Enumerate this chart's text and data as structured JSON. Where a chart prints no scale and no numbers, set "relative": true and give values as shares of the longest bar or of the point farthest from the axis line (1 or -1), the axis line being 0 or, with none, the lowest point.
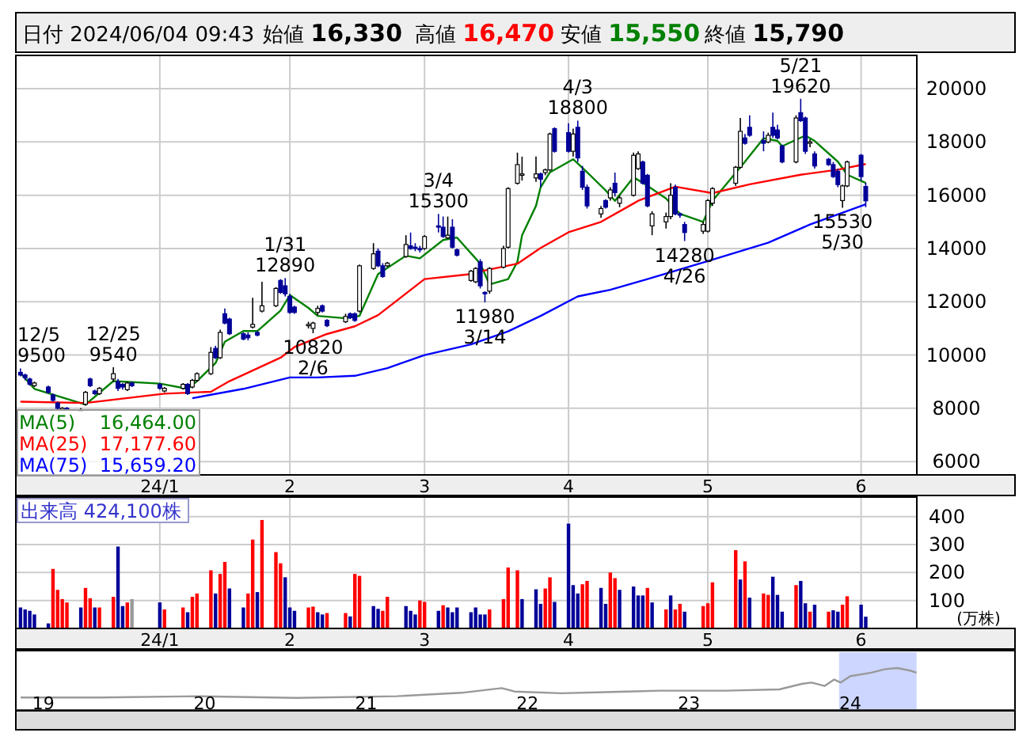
{
  "chart_data": [
    {
      "type": "candlestick",
      "title": "日付 2024/06/04 09:43",
      "xlim": [
        "2023-12-04",
        "2024-06-15"
      ],
      "annotations": [
        "始値 **16,330**",
        "高値 **16,470**",
        "安値 **15,550**",
        "終値 **15,790**",
        {
          "text": "12/5 9500",
          "x": "2023-12-05",
          "y": 9500
        },
        {
          "text": "12/25 9540",
          "x": "2023-12-25",
          "y": 9540
        },
        {
          "text": "1/31 12890",
          "x": "2024-01-31",
          "y": 12890
        },
        {
          "text": "10820 2/6",
          "x": "2024-02-06",
          "y": 10820
        },
        {
          "text": "3/4 15300",
          "x": "2024-03-04",
          "y": 15300
        },
        {
          "text": "11980 3/14",
          "x": "2024-03-14",
          "y": 11980
        },
        {
          "text": "4/3 18800",
          "x": "2024-04-03",
          "y": 18800
        },
        {
          "text": "14280 4/26",
          "x": "2024-04-26",
          "y": 14280
        },
        {
          "text": "5/21 19620",
          "x": "2024-05-21",
          "y": 19620
        },
        {
          "text": "15530 5/30",
          "x": "2024-05-30",
          "y": 15530
        }
      ],
      "x": [
        "2023-12-05",
        "2023-12-06",
        "2023-12-07",
        "2023-12-08",
        "2023-12-11",
        "2023-12-12",
        "2023-12-13",
        "2023-12-14",
        "2023-12-15",
        "2023-12-18",
        "2023-12-19",
        "2023-12-20",
        "2023-12-21",
        "2023-12-22",
        "2023-12-25",
        "2023-12-26",
        "2023-12-27",
        "2023-12-28",
        "2023-12-29",
        "2024-01-04",
        "2024-01-05",
        "2024-01-09",
        "2024-01-10",
        "2024-01-11",
        "2024-01-12",
        "2024-01-15",
        "2024-01-16",
        "2024-01-17",
        "2024-01-18",
        "2024-01-19",
        "2024-01-22",
        "2024-01-23",
        "2024-01-24",
        "2024-01-25",
        "2024-01-26",
        "2024-01-29",
        "2024-01-30",
        "2024-01-31",
        "2024-02-01",
        "2024-02-02",
        "2024-02-05",
        "2024-02-06",
        "2024-02-07",
        "2024-02-08",
        "2024-02-09",
        "2024-02-13",
        "2024-02-14",
        "2024-02-15",
        "2024-02-16",
        "2024-02-19",
        "2024-02-20",
        "2024-02-21",
        "2024-02-22",
        "2024-02-26",
        "2024-02-27",
        "2024-02-28",
        "2024-02-29",
        "2024-03-01",
        "2024-03-04",
        "2024-03-05",
        "2024-03-06",
        "2024-03-07",
        "2024-03-08",
        "2024-03-11",
        "2024-03-12",
        "2024-03-13",
        "2024-03-14",
        "2024-03-15",
        "2024-03-18",
        "2024-03-19",
        "2024-03-21",
        "2024-03-22",
        "2024-03-25",
        "2024-03-26",
        "2024-03-27",
        "2024-03-28",
        "2024-03-29",
        "2024-04-01",
        "2024-04-02",
        "2024-04-03",
        "2024-04-04",
        "2024-04-05",
        "2024-04-08",
        "2024-04-09",
        "2024-04-10",
        "2024-04-11",
        "2024-04-12",
        "2024-04-15",
        "2024-04-16",
        "2024-04-17",
        "2024-04-18",
        "2024-04-19",
        "2024-04-22",
        "2024-04-23",
        "2024-04-24",
        "2024-04-25",
        "2024-04-26",
        "2024-04-30",
        "2024-05-01",
        "2024-05-02",
        "2024-05-07",
        "2024-05-08",
        "2024-05-09",
        "2024-05-10",
        "2024-05-13",
        "2024-05-14",
        "2024-05-15",
        "2024-05-16",
        "2024-05-17",
        "2024-05-20",
        "2024-05-21",
        "2024-05-22",
        "2024-05-23",
        "2024-05-24",
        "2024-05-27",
        "2024-05-28",
        "2024-05-29",
        "2024-05-30",
        "2024-05-31",
        "2024-06-03",
        "2024-06-04"
      ],
      "ohlc": [
        [
          9350,
          9500,
          9200,
          9250
        ],
        [
          9250,
          9300,
          9050,
          9150
        ],
        [
          9100,
          9150,
          8850,
          8900
        ],
        [
          8850,
          9000,
          8800,
          8950
        ],
        [
          8800,
          8850,
          8550,
          8600
        ],
        [
          8500,
          8550,
          8250,
          8300
        ],
        [
          8200,
          8250,
          7950,
          8000
        ],
        [
          7950,
          8050,
          7950,
          8000
        ],
        [
          8000,
          8050,
          7950,
          7950
        ],
        [
          7950,
          8000,
          7950,
          7950
        ],
        [
          8150,
          8650,
          8100,
          8600
        ],
        [
          9100,
          9150,
          8800,
          8850
        ],
        [
          8650,
          8700,
          8500,
          8550
        ],
        [
          8550,
          8800,
          8500,
          8750
        ],
        [
          9100,
          9540,
          9000,
          9300
        ],
        [
          9000,
          9100,
          8650,
          8750
        ],
        [
          8900,
          8950,
          8700,
          8800
        ],
        [
          8700,
          9000,
          8650,
          8950
        ],
        [
          8950,
          9000,
          8800,
          8850
        ],
        [
          8900,
          8950,
          8700,
          8750
        ],
        [
          8650,
          8800,
          8600,
          8750
        ],
        [
          8750,
          8950,
          8700,
          8900
        ],
        [
          8900,
          8950,
          8500,
          8550
        ],
        [
          8800,
          9100,
          8750,
          9050
        ],
        [
          9050,
          9350,
          9000,
          9300
        ],
        [
          9300,
          10300,
          9250,
          10100
        ],
        [
          10250,
          10350,
          9850,
          9900
        ],
        [
          9900,
          10950,
          9850,
          10850
        ],
        [
          11550,
          11750,
          11150,
          11200
        ],
        [
          11350,
          11400,
          10750,
          10800
        ],
        [
          10800,
          10850,
          10550,
          10600
        ],
        [
          10750,
          10850,
          10550,
          10650
        ],
        [
          11050,
          12150,
          11000,
          11150
        ],
        [
          10850,
          10900,
          10700,
          10750
        ],
        [
          11650,
          12750,
          11600,
          11850
        ],
        [
          11850,
          12550,
          11800,
          12500
        ],
        [
          12800,
          12850,
          12300,
          12350
        ],
        [
          12600,
          12890,
          12200,
          12300
        ],
        [
          12200,
          12300,
          11550,
          11600
        ],
        [
          11800,
          11850,
          11550,
          11600
        ],
        [
          11100,
          11250,
          11000,
          11150
        ],
        [
          11000,
          11250,
          10820,
          11200
        ],
        [
          11600,
          11850,
          11500,
          11750
        ],
        [
          11850,
          11900,
          11600,
          11650
        ],
        [
          11300,
          11350,
          11050,
          11100
        ],
        [
          11250,
          11550,
          11200,
          11450
        ],
        [
          11550,
          11600,
          11350,
          11400
        ],
        [
          11550,
          11600,
          11250,
          11300
        ],
        [
          11650,
          13400,
          11600,
          13350
        ],
        [
          13250,
          14200,
          13200,
          13800
        ],
        [
          13900,
          14000,
          13300,
          13350
        ],
        [
          13350,
          13450,
          12900,
          12950
        ],
        [
          13350,
          13500,
          13300,
          13450
        ],
        [
          13700,
          14500,
          13650,
          14150
        ],
        [
          14100,
          14600,
          13950,
          14000
        ],
        [
          14050,
          14200,
          13900,
          14000
        ],
        [
          14000,
          14100,
          13850,
          13950
        ],
        [
          14000,
          14500,
          13950,
          14450
        ],
        [
          14850,
          15300,
          14600,
          14800
        ],
        [
          14800,
          15200,
          14400,
          14450
        ],
        [
          14400,
          15200,
          14350,
          14500
        ],
        [
          14800,
          15100,
          14000,
          14050
        ],
        [
          13950,
          14000,
          13700,
          13750
        ],
        [
          12800,
          13200,
          12750,
          13150
        ],
        [
          12750,
          13300,
          12700,
          13250
        ],
        [
          13500,
          13600,
          12500,
          12600
        ],
        [
          12350,
          12400,
          11980,
          12300
        ],
        [
          12400,
          13300,
          12300,
          13250
        ],
        [
          13300,
          14100,
          13250,
          14000
        ],
        [
          14050,
          16300,
          14000,
          16250
        ],
        [
          16450,
          17600,
          16400,
          17150
        ],
        [
          16750,
          17450,
          16550,
          16800
        ],
        [
          16650,
          17450,
          16500,
          16800
        ],
        [
          16800,
          16850,
          16300,
          16600
        ],
        [
          16850,
          17000,
          16750,
          16950
        ],
        [
          16950,
          18350,
          16900,
          18300
        ],
        [
          18500,
          18550,
          17600,
          17650
        ],
        [
          18350,
          18700,
          17600,
          17650
        ],
        [
          17650,
          18500,
          17450,
          18300
        ],
        [
          18550,
          18800,
          17250,
          17400
        ],
        [
          16900,
          17100,
          16200,
          16300
        ],
        [
          16300,
          16400,
          15500,
          15600
        ],
        [
          15300,
          15600,
          15150,
          15500
        ],
        [
          15800,
          15850,
          15500,
          15550
        ],
        [
          15900,
          16300,
          15800,
          16200
        ],
        [
          16450,
          16850,
          15950,
          16100
        ],
        [
          15700,
          16000,
          15550,
          15900
        ],
        [
          16000,
          17600,
          15950,
          17500
        ],
        [
          17000,
          17650,
          16950,
          17550
        ],
        [
          17250,
          17300,
          16400,
          16450
        ],
        [
          16750,
          16800,
          15550,
          15600
        ],
        [
          14850,
          15400,
          14500,
          15300
        ],
        [
          15000,
          15350,
          14750,
          15200
        ],
        [
          15200,
          16450,
          15100,
          16000
        ],
        [
          16300,
          16400,
          15250,
          15300
        ],
        [
          15300,
          15350,
          15150,
          15250
        ],
        [
          14900,
          15000,
          14280,
          14600
        ],
        [
          14650,
          15000,
          14550,
          14900
        ],
        [
          14650,
          15850,
          14600,
          15800
        ],
        [
          15700,
          16300,
          15600,
          16250
        ],
        [
          16450,
          17100,
          16350,
          17050
        ],
        [
          17050,
          18900,
          17000,
          18400
        ],
        [
          18150,
          18300,
          17900,
          17950
        ],
        [
          18550,
          19000,
          18200,
          18250
        ],
        [
          18050,
          18400,
          17650,
          17950
        ],
        [
          18000,
          18350,
          17950,
          18250
        ],
        [
          18550,
          19100,
          18150,
          18250
        ],
        [
          18450,
          18650,
          18100,
          18150
        ],
        [
          17850,
          17900,
          17200,
          17250
        ],
        [
          17250,
          19000,
          17200,
          18900
        ],
        [
          19100,
          19620,
          18750,
          18800
        ],
        [
          18900,
          18950,
          17550,
          17650
        ],
        [
          17950,
          18100,
          17800,
          18000
        ],
        [
          17550,
          17650,
          17000,
          17100
        ],
        [
          17350,
          17400,
          17100,
          17150
        ],
        [
          17150,
          17250,
          16650,
          16700
        ],
        [
          16900,
          17000,
          16300,
          16400
        ],
        [
          15800,
          16400,
          15530,
          16350
        ],
        [
          16350,
          17300,
          16300,
          17250
        ],
        [
          17500,
          17550,
          16550,
          16700
        ],
        [
          16330,
          16470,
          15550,
          15790
        ]
      ],
      "series": [
        {
          "name": "MA(5) 16,464.00",
          "color": "#008000",
          "type": "line",
          "x": [
            "2023-12-05",
            "2023-12-08",
            "2023-12-19",
            "2023-12-25",
            "2024-01-04",
            "2024-01-10",
            "2024-01-12",
            "2024-01-16",
            "2024-01-18",
            "2024-01-22",
            "2024-01-25",
            "2024-01-30",
            "2024-02-01",
            "2024-02-05",
            "2024-02-07",
            "2024-02-13",
            "2024-02-16",
            "2024-02-20",
            "2024-02-26",
            "2024-02-29",
            "2024-03-05",
            "2024-03-08",
            "2024-03-13",
            "2024-03-15",
            "2024-03-19",
            "2024-03-21",
            "2024-03-22",
            "2024-03-25",
            "2024-03-26",
            "2024-03-28",
            "2024-04-02",
            "2024-04-05",
            "2024-04-09",
            "2024-04-11",
            "2024-04-15",
            "2024-04-17",
            "2024-04-22",
            "2024-04-25",
            "2024-04-30",
            "2024-05-02",
            "2024-05-09",
            "2024-05-13",
            "2024-05-16",
            "2024-05-17",
            "2024-05-22",
            "2024-05-24",
            "2024-05-29",
            "2024-05-31",
            "2024-06-04"
          ],
          "values": [
            9320,
            8730,
            8140,
            9020,
            8930,
            8730,
            9020,
            9700,
            10500,
            10900,
            10900,
            11670,
            12250,
            11770,
            11470,
            11380,
            11470,
            13040,
            13730,
            13630,
            14320,
            14410,
            13430,
            12650,
            12850,
            13500,
            14500,
            15600,
            16300,
            16860,
            17350,
            16860,
            16180,
            15790,
            16670,
            16470,
            15880,
            15300,
            15000,
            15790,
            17260,
            18140,
            18040,
            17840,
            18240,
            18040,
            17260,
            16770,
            16460
          ]
        },
        {
          "name": "MA(25) 17,177.60",
          "color": "#ff0000",
          "type": "line",
          "x": [
            "2023-12-05",
            "2023-12-19",
            "2024-01-05",
            "2024-01-15",
            "2024-01-19",
            "2024-01-24",
            "2024-01-30",
            "2024-02-02",
            "2024-02-09",
            "2024-02-15",
            "2024-02-20",
            "2024-03-01",
            "2024-03-11",
            "2024-03-13",
            "2024-03-21",
            "2024-03-26",
            "2024-04-01",
            "2024-04-08",
            "2024-04-15",
            "2024-04-16",
            "2024-04-24",
            "2024-05-02",
            "2024-05-10",
            "2024-05-21",
            "2024-05-29",
            "2024-06-04"
          ],
          "values": [
            8250,
            8200,
            8550,
            8620,
            9020,
            9420,
            9900,
            10300,
            10790,
            11080,
            11500,
            12850,
            13040,
            13140,
            13430,
            14020,
            14610,
            15000,
            15690,
            15790,
            16320,
            16080,
            16410,
            16770,
            16960,
            17170
          ]
        },
        {
          "name": "MA(75) 15,659.20",
          "color": "#0000ff",
          "type": "line",
          "x": [
            "2024-01-11",
            "2024-01-22",
            "2024-02-01",
            "2024-02-07",
            "2024-02-15",
            "2024-02-22",
            "2024-03-01",
            "2024-03-11",
            "2024-03-19",
            "2024-03-26",
            "2024-04-03",
            "2024-04-10",
            "2024-04-18",
            "2024-05-01",
            "2024-05-14",
            "2024-05-23",
            "2024-06-04"
          ],
          "values": [
            8380,
            8730,
            9160,
            9160,
            9220,
            9510,
            10000,
            10400,
            10890,
            11470,
            12200,
            12450,
            12850,
            13530,
            14220,
            14900,
            15660
          ]
        }
      ],
      "ylim": [
        5500,
        21250
      ],
      "yticks": [
        6000,
        8000,
        10000,
        12000,
        14000,
        16000,
        18000,
        20000
      ],
      "xticks": [
        {
          "value": "2024-01-04",
          "label": "24/1"
        },
        {
          "value": "2024-02-01",
          "label": "2"
        },
        {
          "value": "2024-03-01",
          "label": "3"
        },
        {
          "value": "2024-04-01",
          "label": "4"
        },
        {
          "value": "2024-05-01",
          "label": "5"
        },
        {
          "value": "2024-06-03",
          "label": "6"
        }
      ],
      "grid": true,
      "legend": "bottom left"
    },
    {
      "type": "bar",
      "title": "出来高 424,100株",
      "ylabel": "(万株)",
      "xlim": [
        "2023-12-04",
        "2024-06-15"
      ],
      "x": [
        "2023-12-05",
        "2023-12-06",
        "2023-12-07",
        "2023-12-08",
        "2023-12-11",
        "2023-12-12",
        "2023-12-13",
        "2023-12-14",
        "2023-12-15",
        "2023-12-18",
        "2023-12-19",
        "2023-12-20",
        "2023-12-21",
        "2023-12-22",
        "2023-12-25",
        "2023-12-26",
        "2023-12-27",
        "2023-12-28",
        "2023-12-29",
        "2024-01-04",
        "2024-01-05",
        "2024-01-09",
        "2024-01-10",
        "2024-01-11",
        "2024-01-12",
        "2024-01-15",
        "2024-01-16",
        "2024-01-17",
        "2024-01-18",
        "2024-01-19",
        "2024-01-22",
        "2024-01-23",
        "2024-01-24",
        "2024-01-25",
        "2024-01-26",
        "2024-01-29",
        "2024-01-30",
        "2024-01-31",
        "2024-02-01",
        "2024-02-02",
        "2024-02-05",
        "2024-02-06",
        "2024-02-07",
        "2024-02-08",
        "2024-02-09",
        "2024-02-13",
        "2024-02-14",
        "2024-02-15",
        "2024-02-16",
        "2024-02-19",
        "2024-02-20",
        "2024-02-21",
        "2024-02-22",
        "2024-02-26",
        "2024-02-27",
        "2024-02-28",
        "2024-02-29",
        "2024-03-01",
        "2024-03-04",
        "2024-03-05",
        "2024-03-06",
        "2024-03-07",
        "2024-03-08",
        "2024-03-11",
        "2024-03-12",
        "2024-03-13",
        "2024-03-14",
        "2024-03-15",
        "2024-03-18",
        "2024-03-19",
        "2024-03-21",
        "2024-03-22",
        "2024-03-25",
        "2024-03-26",
        "2024-03-27",
        "2024-03-28",
        "2024-03-29",
        "2024-04-01",
        "2024-04-02",
        "2024-04-03",
        "2024-04-04",
        "2024-04-05",
        "2024-04-08",
        "2024-04-09",
        "2024-04-10",
        "2024-04-11",
        "2024-04-12",
        "2024-04-15",
        "2024-04-16",
        "2024-04-17",
        "2024-04-18",
        "2024-04-19",
        "2024-04-22",
        "2024-04-23",
        "2024-04-24",
        "2024-04-25",
        "2024-04-26",
        "2024-04-30",
        "2024-05-01",
        "2024-05-02",
        "2024-05-07",
        "2024-05-08",
        "2024-05-09",
        "2024-05-10",
        "2024-05-13",
        "2024-05-14",
        "2024-05-15",
        "2024-05-16",
        "2024-05-17",
        "2024-05-20",
        "2024-05-21",
        "2024-05-22",
        "2024-05-23",
        "2024-05-24",
        "2024-05-27",
        "2024-05-28",
        "2024-05-29",
        "2024-05-30",
        "2024-05-31",
        "2024-06-03",
        "2024-06-04"
      ],
      "values": [
        75,
        68,
        63,
        50,
        18,
        213,
        138,
        105,
        93,
        75,
        145,
        108,
        75,
        75,
        113,
        293,
        80,
        93,
        105,
        93,
        68,
        75,
        58,
        113,
        125,
        208,
        125,
        195,
        238,
        143,
        75,
        125,
        318,
        130,
        388,
        273,
        233,
        183,
        75,
        63,
        75,
        78,
        58,
        50,
        55,
        55,
        43,
        195,
        188,
        80,
        70,
        63,
        113,
        80,
        63,
        50,
        100,
        95,
        63,
        83,
        75,
        58,
        75,
        58,
        75,
        50,
        50,
        68,
        105,
        218,
        208,
        105,
        140,
        88,
        143,
        183,
        95,
        375,
        155,
        125,
        158,
        170,
        145,
        88,
        200,
        180,
        138,
        150,
        118,
        118,
        145,
        93,
        68,
        118,
        68,
        88,
        60,
        80,
        90,
        165,
        280,
        175,
        240,
        110,
        125,
        120,
        185,
        120,
        60,
        155,
        170,
        90,
        60,
        85,
        60,
        65,
        60,
        85,
        115,
        85,
        42
      ],
      "colors": [
        "#000099",
        "#000099",
        "#000099",
        "#000099",
        "#000099",
        "#ff0000",
        "#ff0000",
        "#ff0000",
        "#ff0000",
        "#000099",
        "#ff0000",
        "#ff0000",
        "#000099",
        "#ff0000",
        "#ff0000",
        "#000099",
        "#000099",
        "#ff0000",
        "#999999",
        "#000099",
        "#ff0000",
        "#ff0000",
        "#000099",
        "#ff0000",
        "#ff0000",
        "#ff0000",
        "#000099",
        "#ff0000",
        "#ff0000",
        "#000099",
        "#000099",
        "#ff0000",
        "#ff0000",
        "#000099",
        "#ff0000",
        "#ff0000",
        "#ff0000",
        "#000099",
        "#000099",
        "#000099",
        "#ff0000",
        "#ff0000",
        "#000099",
        "#000099",
        "#ff0000",
        "#ff0000",
        "#000099",
        "#ff0000",
        "#ff0000",
        "#000099",
        "#000099",
        "#ff0000",
        "#ff0000",
        "#000099",
        "#000099",
        "#000099",
        "#ff0000",
        "#ff0000",
        "#000099",
        "#ff0000",
        "#000099",
        "#000099",
        "#000099",
        "#000099",
        "#000099",
        "#000099",
        "#000099",
        "#ff0000",
        "#ff0000",
        "#ff0000",
        "#ff0000",
        "#000099",
        "#000099",
        "#000099",
        "#ff0000",
        "#ff0000",
        "#000099",
        "#000099",
        "#000099",
        "#000099",
        "#ff0000",
        "#ff0000",
        "#000099",
        "#000099",
        "#ff0000",
        "#ff0000",
        "#000099",
        "#000099",
        "#000099",
        "#000099",
        "#ff0000",
        "#000099",
        "#ff0000",
        "#000099",
        "#ff0000",
        "#ff0000",
        "#000099",
        "#ff0000",
        "#ff0000",
        "#ff0000",
        "#ff0000",
        "#000099",
        "#ff0000",
        "#000099",
        "#ff0000",
        "#ff0000",
        "#000099",
        "#000099",
        "#000099",
        "#ff0000",
        "#000099",
        "#000099",
        "#ff0000",
        "#000099",
        "#ff0000",
        "#000099",
        "#000099",
        "#ff0000",
        "#ff0000",
        "#000099",
        "#000099"
      ],
      "ylim": [
        0,
        470
      ],
      "yticks": [
        100,
        200,
        300,
        400
      ],
      "xticks": [
        {
          "value": "2024-01-04",
          "label": "24/1"
        },
        {
          "value": "2024-02-01",
          "label": "2"
        },
        {
          "value": "2024-03-01",
          "label": "3"
        },
        {
          "value": "2024-04-01",
          "label": "4"
        },
        {
          "value": "2024-05-01",
          "label": "5"
        },
        {
          "value": "2024-06-03",
          "label": "6"
        }
      ],
      "grid": true
    },
    {
      "type": "line",
      "relative": true,
      "color": "#999999",
      "x": [
        2018.86,
        2019.35,
        2019.96,
        2020.57,
        2021.19,
        2021.59,
        2021.84,
        2021.92,
        2022.21,
        2022.62,
        2022.82,
        2023.23,
        2023.56,
        2023.7,
        2023.76,
        2023.84,
        2023.9,
        2023.94,
        2024.0,
        2024.13,
        2024.21,
        2024.29,
        2024.37,
        2024.41
      ],
      "values": [
        0.31,
        0.31,
        0.34,
        0.3,
        0.34,
        0.42,
        0.53,
        0.45,
        0.41,
        0.45,
        0.47,
        0.47,
        0.5,
        0.63,
        0.66,
        0.58,
        0.73,
        0.66,
        0.81,
        0.89,
        0.97,
        1,
        0.94,
        0.89
      ],
      "xlim": [
        2018.83,
        2025.02
      ],
      "xticks": [
        {
          "value": 2019,
          "label": "19"
        },
        {
          "value": 2020,
          "label": "20"
        },
        {
          "value": 2021,
          "label": "21"
        },
        {
          "value": 2022,
          "label": "22"
        },
        {
          "value": 2023,
          "label": "23"
        },
        {
          "value": 2024,
          "label": "24"
        }
      ],
      "bands": [
        {
          "axis": "x",
          "from": 2023.93,
          "to": 2024.41,
          "color": "#aabbff"
        }
      ]
    }
  ]
}
